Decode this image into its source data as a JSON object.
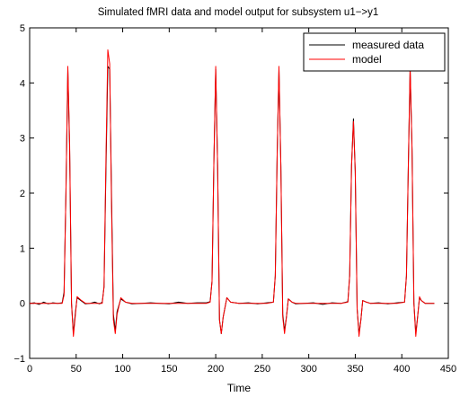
{
  "chart_data": {
    "type": "line",
    "title": "Simulated fMRI data and model output for subsystem u1−>y1",
    "xlabel": "Time",
    "ylabel": "",
    "xlim": [
      0,
      450
    ],
    "ylim": [
      -1,
      5
    ],
    "xticks": [
      0,
      50,
      100,
      150,
      200,
      250,
      300,
      350,
      400,
      450
    ],
    "yticks": [
      -1,
      0,
      1,
      2,
      3,
      4,
      5
    ],
    "grid": false,
    "legend_position": "top-right",
    "series": [
      {
        "name": "measured data",
        "color": "#000000",
        "x": [
          0,
          5,
          10,
          15,
          20,
          25,
          30,
          35,
          37,
          39,
          41,
          43,
          45,
          47,
          49,
          51,
          55,
          60,
          65,
          70,
          75,
          78,
          80,
          82,
          84,
          86,
          88,
          90,
          92,
          94,
          98,
          103,
          110,
          120,
          130,
          140,
          150,
          160,
          170,
          180,
          190,
          194,
          196,
          198,
          200,
          202,
          204,
          206,
          208,
          212,
          216,
          225,
          235,
          245,
          255,
          262,
          264,
          266,
          268,
          270,
          272,
          274,
          276,
          278,
          282,
          286,
          295,
          305,
          315,
          325,
          335,
          342,
          344,
          346,
          348,
          350,
          352,
          354,
          356,
          358,
          362,
          366,
          375,
          385,
          395,
          403,
          405,
          407,
          409,
          411,
          413,
          415,
          417,
          419,
          421,
          425,
          430,
          435
        ],
        "y": [
          0.0,
          0.01,
          -0.02,
          0.02,
          -0.01,
          0.01,
          0.0,
          0.01,
          0.2,
          2.0,
          4.25,
          2.8,
          0.0,
          -0.55,
          -0.2,
          0.1,
          0.05,
          -0.01,
          0.0,
          0.02,
          -0.01,
          0.02,
          0.3,
          2.4,
          4.3,
          4.25,
          2.0,
          -0.2,
          -0.5,
          -0.15,
          0.08,
          0.02,
          -0.01,
          0.0,
          0.01,
          0.0,
          -0.01,
          0.02,
          0.0,
          0.01,
          0.01,
          0.03,
          0.4,
          2.5,
          4.25,
          2.5,
          -0.3,
          -0.55,
          -0.25,
          0.1,
          0.02,
          0.0,
          0.01,
          -0.01,
          0.01,
          0.02,
          0.5,
          2.7,
          4.25,
          2.5,
          -0.2,
          -0.5,
          -0.25,
          0.08,
          0.02,
          -0.01,
          0.0,
          0.01,
          -0.02,
          0.01,
          0.0,
          0.03,
          0.5,
          2.5,
          3.35,
          2.4,
          -0.1,
          -0.55,
          -0.3,
          0.05,
          0.02,
          0.0,
          0.01,
          -0.01,
          0.01,
          0.02,
          0.5,
          2.5,
          4.25,
          2.8,
          0.0,
          -0.55,
          -0.25,
          0.1,
          0.05,
          0.0,
          0.0,
          0.0
        ]
      },
      {
        "name": "model",
        "color": "#ff0000",
        "x": [
          0,
          5,
          10,
          15,
          20,
          25,
          30,
          35,
          37,
          39,
          41,
          43,
          45,
          47,
          49,
          51,
          55,
          60,
          65,
          70,
          75,
          78,
          80,
          82,
          84,
          86,
          88,
          90,
          92,
          94,
          98,
          103,
          110,
          120,
          130,
          140,
          150,
          160,
          170,
          180,
          190,
          194,
          196,
          198,
          200,
          202,
          204,
          206,
          208,
          212,
          216,
          225,
          235,
          245,
          255,
          262,
          264,
          266,
          268,
          270,
          272,
          274,
          276,
          278,
          282,
          286,
          295,
          305,
          315,
          325,
          335,
          342,
          344,
          346,
          348,
          350,
          352,
          354,
          356,
          358,
          362,
          366,
          375,
          385,
          395,
          403,
          405,
          407,
          409,
          411,
          413,
          415,
          417,
          419,
          421,
          425,
          430,
          435
        ],
        "y": [
          0.0,
          0.0,
          0.0,
          0.0,
          0.0,
          0.0,
          0.0,
          0.0,
          0.15,
          2.0,
          4.3,
          2.9,
          0.0,
          -0.6,
          -0.25,
          0.12,
          0.06,
          0.0,
          0.0,
          0.0,
          0.0,
          0.0,
          0.3,
          2.6,
          4.6,
          4.35,
          1.8,
          -0.3,
          -0.55,
          -0.2,
          0.1,
          0.02,
          0.0,
          0.0,
          0.0,
          0.0,
          0.0,
          0.0,
          0.0,
          0.0,
          0.0,
          0.02,
          0.4,
          2.5,
          4.3,
          2.5,
          -0.3,
          -0.55,
          -0.25,
          0.1,
          0.02,
          0.0,
          0.0,
          0.0,
          0.0,
          0.02,
          0.5,
          2.7,
          4.3,
          2.5,
          -0.25,
          -0.55,
          -0.25,
          0.08,
          0.02,
          0.0,
          0.0,
          0.0,
          0.0,
          0.0,
          0.0,
          0.02,
          0.5,
          2.5,
          3.3,
          2.4,
          -0.1,
          -0.6,
          -0.3,
          0.05,
          0.02,
          0.0,
          0.0,
          0.0,
          0.0,
          0.02,
          0.5,
          2.5,
          4.3,
          2.8,
          0.0,
          -0.6,
          -0.25,
          0.12,
          0.05,
          0.0,
          0.0,
          0.0
        ]
      }
    ]
  }
}
